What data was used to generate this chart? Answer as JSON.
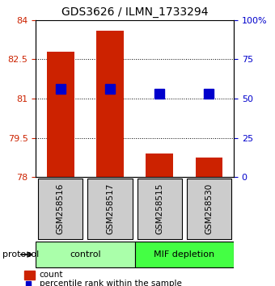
{
  "title": "GDS3626 / ILMN_1733294",
  "samples": [
    "GSM258516",
    "GSM258517",
    "GSM258515",
    "GSM258530"
  ],
  "bar_values": [
    82.8,
    83.6,
    78.9,
    78.75
  ],
  "bar_bottom": 78.0,
  "percentile_values": [
    81.35,
    81.35,
    81.2,
    81.2
  ],
  "bar_color": "#cc2200",
  "percentile_color": "#0000cc",
  "ylim_left": [
    78.0,
    84.0
  ],
  "ylim_right": [
    0,
    100
  ],
  "yticks_left": [
    78,
    79.5,
    81,
    82.5,
    84
  ],
  "ytick_labels_left": [
    "78",
    "79.5",
    "81",
    "82.5",
    "84"
  ],
  "yticks_right": [
    0,
    25,
    50,
    75,
    100
  ],
  "ytick_labels_right": [
    "0",
    "25",
    "50",
    "75",
    "100%"
  ],
  "groups": [
    {
      "label": "control",
      "samples": [
        "GSM258516",
        "GSM258517"
      ],
      "color": "#aaffaa"
    },
    {
      "label": "MIF depletion",
      "samples": [
        "GSM258515",
        "GSM258530"
      ],
      "color": "#44ff44"
    }
  ],
  "protocol_label": "protocol",
  "bar_width": 0.55,
  "percentile_marker_size": 8,
  "legend_items": [
    {
      "label": "count",
      "color": "#cc2200"
    },
    {
      "label": "percentile rank within the sample",
      "color": "#0000cc"
    }
  ],
  "grid_color": "#000000",
  "background_color": "#ffffff",
  "left_tick_color": "#cc2200",
  "right_tick_color": "#0000cc",
  "sample_box_color": "#cccccc"
}
